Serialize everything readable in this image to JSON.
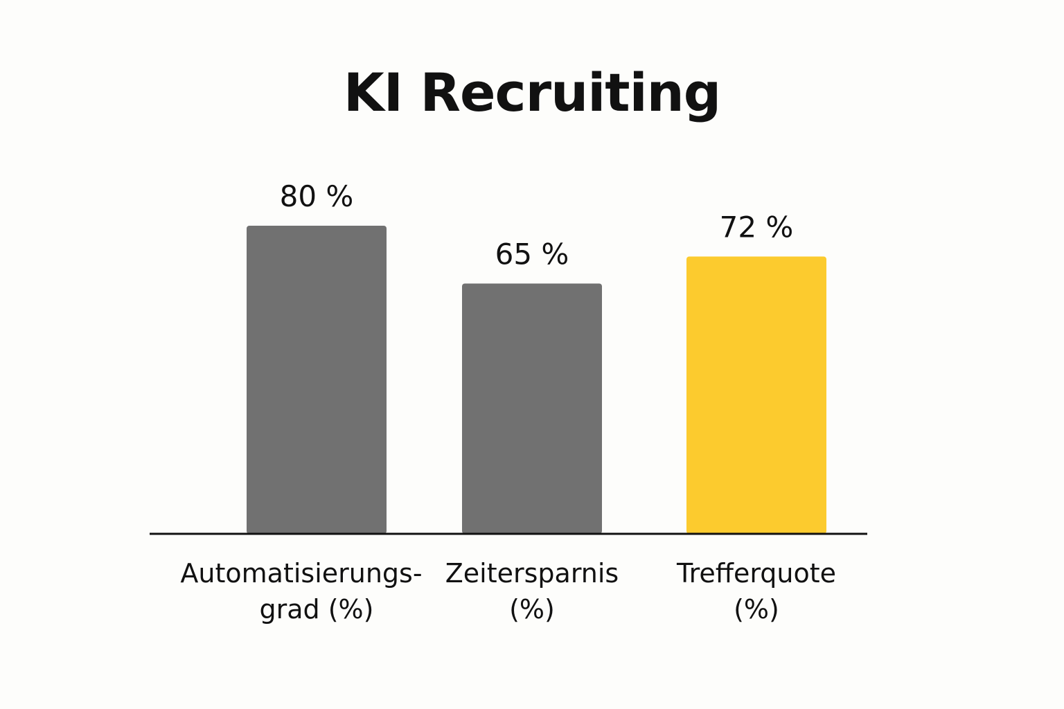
{
  "chart_data": {
    "type": "bar",
    "title": "KI Recruiting",
    "categories": [
      [
        "Automatisierungs-",
        "grad (%)"
      ],
      [
        "Zeitersparnis",
        "(%)"
      ],
      [
        "Trefferquote",
        "(%)"
      ]
    ],
    "values": [
      80,
      65,
      72
    ],
    "data_labels": [
      "80 %",
      "65 %",
      "72 %"
    ],
    "bar_colors": [
      "#717171",
      "#717171",
      "#fccb2e"
    ],
    "ylim": [
      0,
      100
    ],
    "grid": false,
    "legend": "none"
  }
}
